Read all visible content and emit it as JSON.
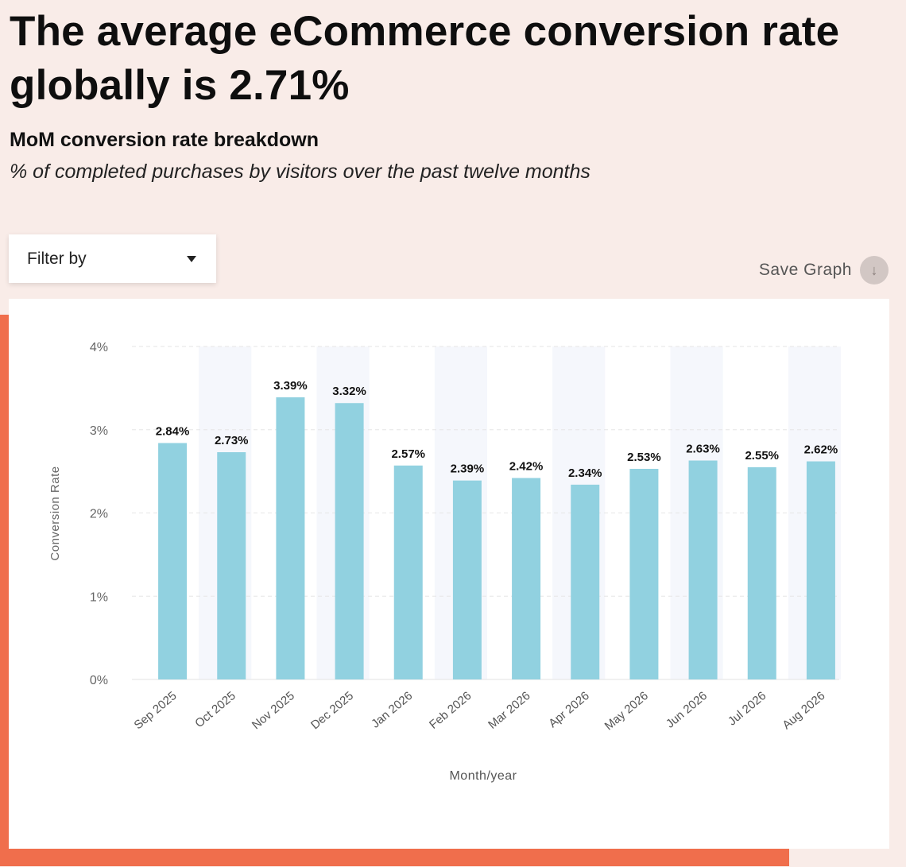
{
  "header": {
    "title": "The average eCommerce conversion rate globally is 2.71%",
    "subtitle": "MoM conversion rate breakdown",
    "description": "% of completed purchases by visitors over the past twelve months"
  },
  "controls": {
    "filter_label": "Filter by",
    "save_label": "Save Graph"
  },
  "icons": {
    "filter": "chevron-down-icon",
    "save": "download-icon"
  },
  "colors": {
    "background": "#f9ece8",
    "accent": "#f06e4c",
    "bar": "#91d1e0",
    "band": "#f5f7fc"
  },
  "chart_data": {
    "type": "bar",
    "categories": [
      "Sep 2025",
      "Oct 2025",
      "Nov 2025",
      "Dec 2025",
      "Jan 2026",
      "Feb 2026",
      "Mar 2026",
      "Apr 2026",
      "May 2026",
      "Jun 2026",
      "Jul 2026",
      "Aug 2026"
    ],
    "values": [
      2.84,
      2.73,
      3.39,
      3.32,
      2.57,
      2.39,
      2.42,
      2.34,
      2.53,
      2.63,
      2.55,
      2.62
    ],
    "data_labels": [
      "2.84%",
      "2.73%",
      "3.39%",
      "3.32%",
      "2.57%",
      "2.39%",
      "2.42%",
      "2.34%",
      "2.53%",
      "2.63%",
      "2.55%",
      "2.62%"
    ],
    "y_ticks": [
      0,
      1,
      2,
      3,
      4
    ],
    "y_tick_labels": [
      "0%",
      "1%",
      "2%",
      "3%",
      "4%"
    ],
    "xlabel": "Month/year",
    "ylabel": "Conversion Rate",
    "ylim": [
      0,
      4
    ],
    "grid": true,
    "legend": "none"
  }
}
